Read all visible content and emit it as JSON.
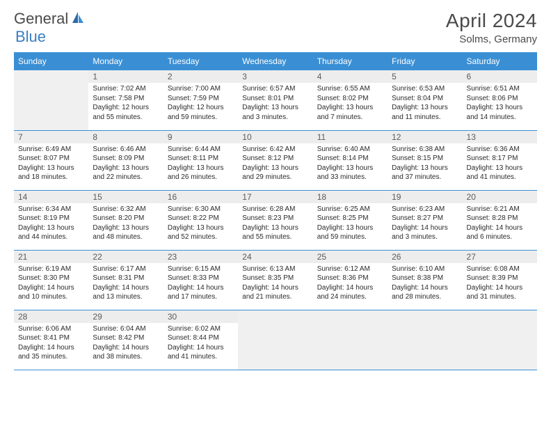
{
  "logo": {
    "text1": "General",
    "text2": "Blue"
  },
  "title": {
    "month": "April 2024",
    "location": "Solms, Germany"
  },
  "colors": {
    "header_bg": "#3a8fd4",
    "header_text": "#ffffff",
    "text": "#2a2a2a",
    "daynum_bg": "#ededed",
    "border": "#3a8fd4",
    "empty_bg": "#f0f0f0",
    "logo_gray": "#4a4a4a",
    "logo_blue": "#3a7fc4"
  },
  "day_headers": [
    "Sunday",
    "Monday",
    "Tuesday",
    "Wednesday",
    "Thursday",
    "Friday",
    "Saturday"
  ],
  "weeks": [
    [
      null,
      {
        "n": "1",
        "sr": "Sunrise: 7:02 AM",
        "ss": "Sunset: 7:58 PM",
        "dl": "Daylight: 12 hours and 55 minutes."
      },
      {
        "n": "2",
        "sr": "Sunrise: 7:00 AM",
        "ss": "Sunset: 7:59 PM",
        "dl": "Daylight: 12 hours and 59 minutes."
      },
      {
        "n": "3",
        "sr": "Sunrise: 6:57 AM",
        "ss": "Sunset: 8:01 PM",
        "dl": "Daylight: 13 hours and 3 minutes."
      },
      {
        "n": "4",
        "sr": "Sunrise: 6:55 AM",
        "ss": "Sunset: 8:02 PM",
        "dl": "Daylight: 13 hours and 7 minutes."
      },
      {
        "n": "5",
        "sr": "Sunrise: 6:53 AM",
        "ss": "Sunset: 8:04 PM",
        "dl": "Daylight: 13 hours and 11 minutes."
      },
      {
        "n": "6",
        "sr": "Sunrise: 6:51 AM",
        "ss": "Sunset: 8:06 PM",
        "dl": "Daylight: 13 hours and 14 minutes."
      }
    ],
    [
      {
        "n": "7",
        "sr": "Sunrise: 6:49 AM",
        "ss": "Sunset: 8:07 PM",
        "dl": "Daylight: 13 hours and 18 minutes."
      },
      {
        "n": "8",
        "sr": "Sunrise: 6:46 AM",
        "ss": "Sunset: 8:09 PM",
        "dl": "Daylight: 13 hours and 22 minutes."
      },
      {
        "n": "9",
        "sr": "Sunrise: 6:44 AM",
        "ss": "Sunset: 8:11 PM",
        "dl": "Daylight: 13 hours and 26 minutes."
      },
      {
        "n": "10",
        "sr": "Sunrise: 6:42 AM",
        "ss": "Sunset: 8:12 PM",
        "dl": "Daylight: 13 hours and 29 minutes."
      },
      {
        "n": "11",
        "sr": "Sunrise: 6:40 AM",
        "ss": "Sunset: 8:14 PM",
        "dl": "Daylight: 13 hours and 33 minutes."
      },
      {
        "n": "12",
        "sr": "Sunrise: 6:38 AM",
        "ss": "Sunset: 8:15 PM",
        "dl": "Daylight: 13 hours and 37 minutes."
      },
      {
        "n": "13",
        "sr": "Sunrise: 6:36 AM",
        "ss": "Sunset: 8:17 PM",
        "dl": "Daylight: 13 hours and 41 minutes."
      }
    ],
    [
      {
        "n": "14",
        "sr": "Sunrise: 6:34 AM",
        "ss": "Sunset: 8:19 PM",
        "dl": "Daylight: 13 hours and 44 minutes."
      },
      {
        "n": "15",
        "sr": "Sunrise: 6:32 AM",
        "ss": "Sunset: 8:20 PM",
        "dl": "Daylight: 13 hours and 48 minutes."
      },
      {
        "n": "16",
        "sr": "Sunrise: 6:30 AM",
        "ss": "Sunset: 8:22 PM",
        "dl": "Daylight: 13 hours and 52 minutes."
      },
      {
        "n": "17",
        "sr": "Sunrise: 6:28 AM",
        "ss": "Sunset: 8:23 PM",
        "dl": "Daylight: 13 hours and 55 minutes."
      },
      {
        "n": "18",
        "sr": "Sunrise: 6:25 AM",
        "ss": "Sunset: 8:25 PM",
        "dl": "Daylight: 13 hours and 59 minutes."
      },
      {
        "n": "19",
        "sr": "Sunrise: 6:23 AM",
        "ss": "Sunset: 8:27 PM",
        "dl": "Daylight: 14 hours and 3 minutes."
      },
      {
        "n": "20",
        "sr": "Sunrise: 6:21 AM",
        "ss": "Sunset: 8:28 PM",
        "dl": "Daylight: 14 hours and 6 minutes."
      }
    ],
    [
      {
        "n": "21",
        "sr": "Sunrise: 6:19 AM",
        "ss": "Sunset: 8:30 PM",
        "dl": "Daylight: 14 hours and 10 minutes."
      },
      {
        "n": "22",
        "sr": "Sunrise: 6:17 AM",
        "ss": "Sunset: 8:31 PM",
        "dl": "Daylight: 14 hours and 13 minutes."
      },
      {
        "n": "23",
        "sr": "Sunrise: 6:15 AM",
        "ss": "Sunset: 8:33 PM",
        "dl": "Daylight: 14 hours and 17 minutes."
      },
      {
        "n": "24",
        "sr": "Sunrise: 6:13 AM",
        "ss": "Sunset: 8:35 PM",
        "dl": "Daylight: 14 hours and 21 minutes."
      },
      {
        "n": "25",
        "sr": "Sunrise: 6:12 AM",
        "ss": "Sunset: 8:36 PM",
        "dl": "Daylight: 14 hours and 24 minutes."
      },
      {
        "n": "26",
        "sr": "Sunrise: 6:10 AM",
        "ss": "Sunset: 8:38 PM",
        "dl": "Daylight: 14 hours and 28 minutes."
      },
      {
        "n": "27",
        "sr": "Sunrise: 6:08 AM",
        "ss": "Sunset: 8:39 PM",
        "dl": "Daylight: 14 hours and 31 minutes."
      }
    ],
    [
      {
        "n": "28",
        "sr": "Sunrise: 6:06 AM",
        "ss": "Sunset: 8:41 PM",
        "dl": "Daylight: 14 hours and 35 minutes."
      },
      {
        "n": "29",
        "sr": "Sunrise: 6:04 AM",
        "ss": "Sunset: 8:42 PM",
        "dl": "Daylight: 14 hours and 38 minutes."
      },
      {
        "n": "30",
        "sr": "Sunrise: 6:02 AM",
        "ss": "Sunset: 8:44 PM",
        "dl": "Daylight: 14 hours and 41 minutes."
      },
      null,
      null,
      null,
      null
    ]
  ]
}
